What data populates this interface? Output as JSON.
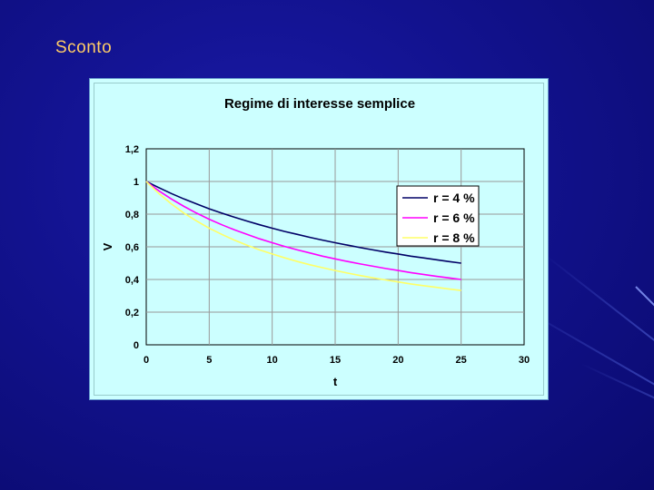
{
  "slide": {
    "title": "Sconto"
  },
  "colors": {
    "background": "#12128e",
    "title": "#ffcc66",
    "chart_bg": "#ccffff",
    "plot_bg": "#ccffff",
    "grid": "#999999"
  },
  "chart_data": {
    "type": "line",
    "title": "Regime di interesse semplice",
    "xlabel": "t",
    "ylabel": "V",
    "xlim": [
      0,
      30
    ],
    "ylim": [
      0,
      1.2
    ],
    "x_ticks": [
      "0",
      "5",
      "10",
      "15",
      "20",
      "25",
      "30"
    ],
    "y_ticks": [
      "0",
      "0,2",
      "0,4",
      "0,6",
      "0,8",
      "1",
      "1,2"
    ],
    "grid": true,
    "legend_position": "top-right",
    "x": [
      0,
      1,
      2,
      3,
      4,
      5,
      6,
      7,
      8,
      9,
      10,
      11,
      12,
      13,
      14,
      15,
      16,
      17,
      18,
      19,
      20,
      21,
      22,
      23,
      24,
      25
    ],
    "series": [
      {
        "name": "r = 4 %",
        "color": "#000066",
        "values": [
          1,
          0.962,
          0.926,
          0.893,
          0.862,
          0.833,
          0.806,
          0.781,
          0.758,
          0.735,
          0.714,
          0.694,
          0.676,
          0.658,
          0.641,
          0.625,
          0.61,
          0.595,
          0.581,
          0.568,
          0.556,
          0.543,
          0.532,
          0.521,
          0.51,
          0.5
        ]
      },
      {
        "name": "r = 6 %",
        "color": "#ff00ff",
        "values": [
          1,
          0.943,
          0.893,
          0.847,
          0.806,
          0.769,
          0.735,
          0.704,
          0.676,
          0.649,
          0.625,
          0.602,
          0.581,
          0.562,
          0.543,
          0.526,
          0.51,
          0.495,
          0.481,
          0.467,
          0.455,
          0.442,
          0.431,
          0.42,
          0.41,
          0.4
        ]
      },
      {
        "name": "r = 8 %",
        "color": "#ffff66",
        "values": [
          1,
          0.926,
          0.862,
          0.806,
          0.758,
          0.714,
          0.676,
          0.641,
          0.61,
          0.581,
          0.556,
          0.532,
          0.51,
          0.49,
          0.472,
          0.455,
          0.439,
          0.424,
          0.41,
          0.397,
          0.385,
          0.373,
          0.362,
          0.352,
          0.342,
          0.333
        ]
      }
    ]
  }
}
